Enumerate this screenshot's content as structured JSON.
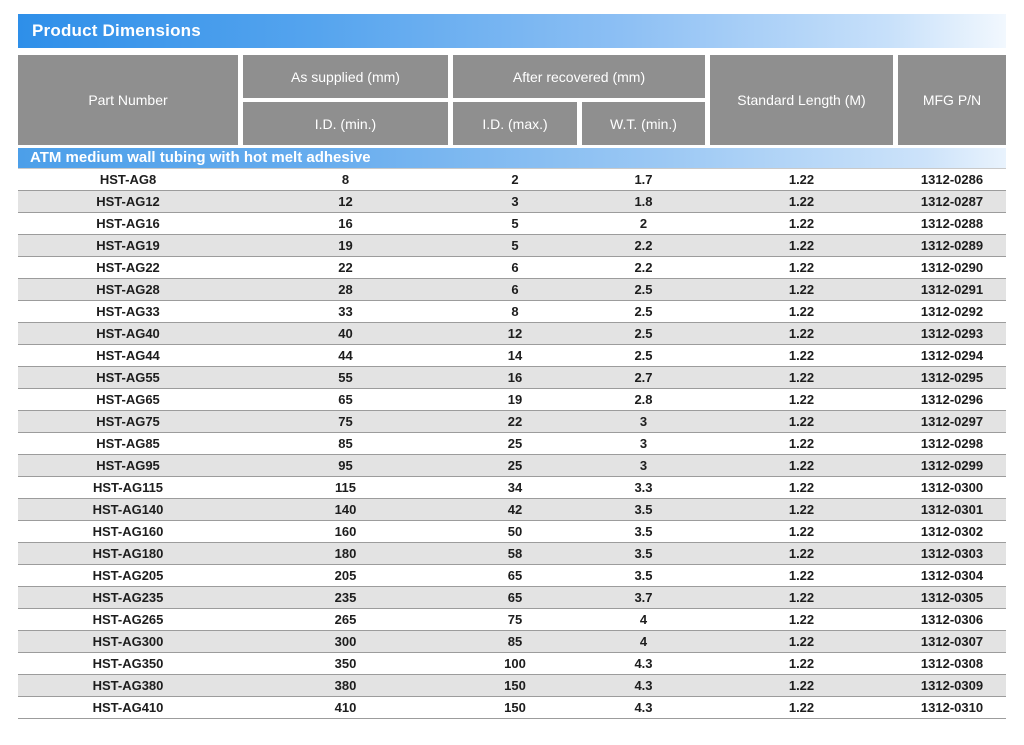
{
  "page_title": "Product Dimensions",
  "table": {
    "header": {
      "part_number": "Part Number",
      "as_supplied_group": "As supplied (mm)",
      "after_recovered_group": "After recovered (mm)",
      "id_min": "I.D. (min.)",
      "id_max": "I.D. (max.)",
      "wt_min": "W.T. (min.)",
      "standard_length": "Standard Length (M)",
      "mfg_pn": "MFG P/N"
    },
    "section_label": "ATM medium wall tubing with hot melt adhesive",
    "rows": [
      [
        "HST-AG8",
        "8",
        "2",
        "1.7",
        "1.22",
        "1312-0286"
      ],
      [
        "HST-AG12",
        "12",
        "3",
        "1.8",
        "1.22",
        "1312-0287"
      ],
      [
        "HST-AG16",
        "16",
        "5",
        "2",
        "1.22",
        "1312-0288"
      ],
      [
        "HST-AG19",
        "19",
        "5",
        "2.2",
        "1.22",
        "1312-0289"
      ],
      [
        "HST-AG22",
        "22",
        "6",
        "2.2",
        "1.22",
        "1312-0290"
      ],
      [
        "HST-AG28",
        "28",
        "6",
        "2.5",
        "1.22",
        "1312-0291"
      ],
      [
        "HST-AG33",
        "33",
        "8",
        "2.5",
        "1.22",
        "1312-0292"
      ],
      [
        "HST-AG40",
        "40",
        "12",
        "2.5",
        "1.22",
        "1312-0293"
      ],
      [
        "HST-AG44",
        "44",
        "14",
        "2.5",
        "1.22",
        "1312-0294"
      ],
      [
        "HST-AG55",
        "55",
        "16",
        "2.7",
        "1.22",
        "1312-0295"
      ],
      [
        "HST-AG65",
        "65",
        "19",
        "2.8",
        "1.22",
        "1312-0296"
      ],
      [
        "HST-AG75",
        "75",
        "22",
        "3",
        "1.22",
        "1312-0297"
      ],
      [
        "HST-AG85",
        "85",
        "25",
        "3",
        "1.22",
        "1312-0298"
      ],
      [
        "HST-AG95",
        "95",
        "25",
        "3",
        "1.22",
        "1312-0299"
      ],
      [
        "HST-AG115",
        "115",
        "34",
        "3.3",
        "1.22",
        "1312-0300"
      ],
      [
        "HST-AG140",
        "140",
        "42",
        "3.5",
        "1.22",
        "1312-0301"
      ],
      [
        "HST-AG160",
        "160",
        "50",
        "3.5",
        "1.22",
        "1312-0302"
      ],
      [
        "HST-AG180",
        "180",
        "58",
        "3.5",
        "1.22",
        "1312-0303"
      ],
      [
        "HST-AG205",
        "205",
        "65",
        "3.5",
        "1.22",
        "1312-0304"
      ],
      [
        "HST-AG235",
        "235",
        "65",
        "3.7",
        "1.22",
        "1312-0305"
      ],
      [
        "HST-AG265",
        "265",
        "75",
        "4",
        "1.22",
        "1312-0306"
      ],
      [
        "HST-AG300",
        "300",
        "85",
        "4",
        "1.22",
        "1312-0307"
      ],
      [
        "HST-AG350",
        "350",
        "100",
        "4.3",
        "1.22",
        "1312-0308"
      ],
      [
        "HST-AG380",
        "380",
        "150",
        "4.3",
        "1.22",
        "1312-0309"
      ],
      [
        "HST-AG410",
        "410",
        "150",
        "4.3",
        "1.22",
        "1312-0310"
      ]
    ]
  },
  "colors": {
    "accent_blue": "#2e8fe9",
    "band_blue": "#4c9fe9",
    "header_gray": "#8f8f8f",
    "row_stripe_gray": "#e3e3e3",
    "row_border_gray": "#9c9c9c",
    "text_dark": "#1d1d1d"
  }
}
